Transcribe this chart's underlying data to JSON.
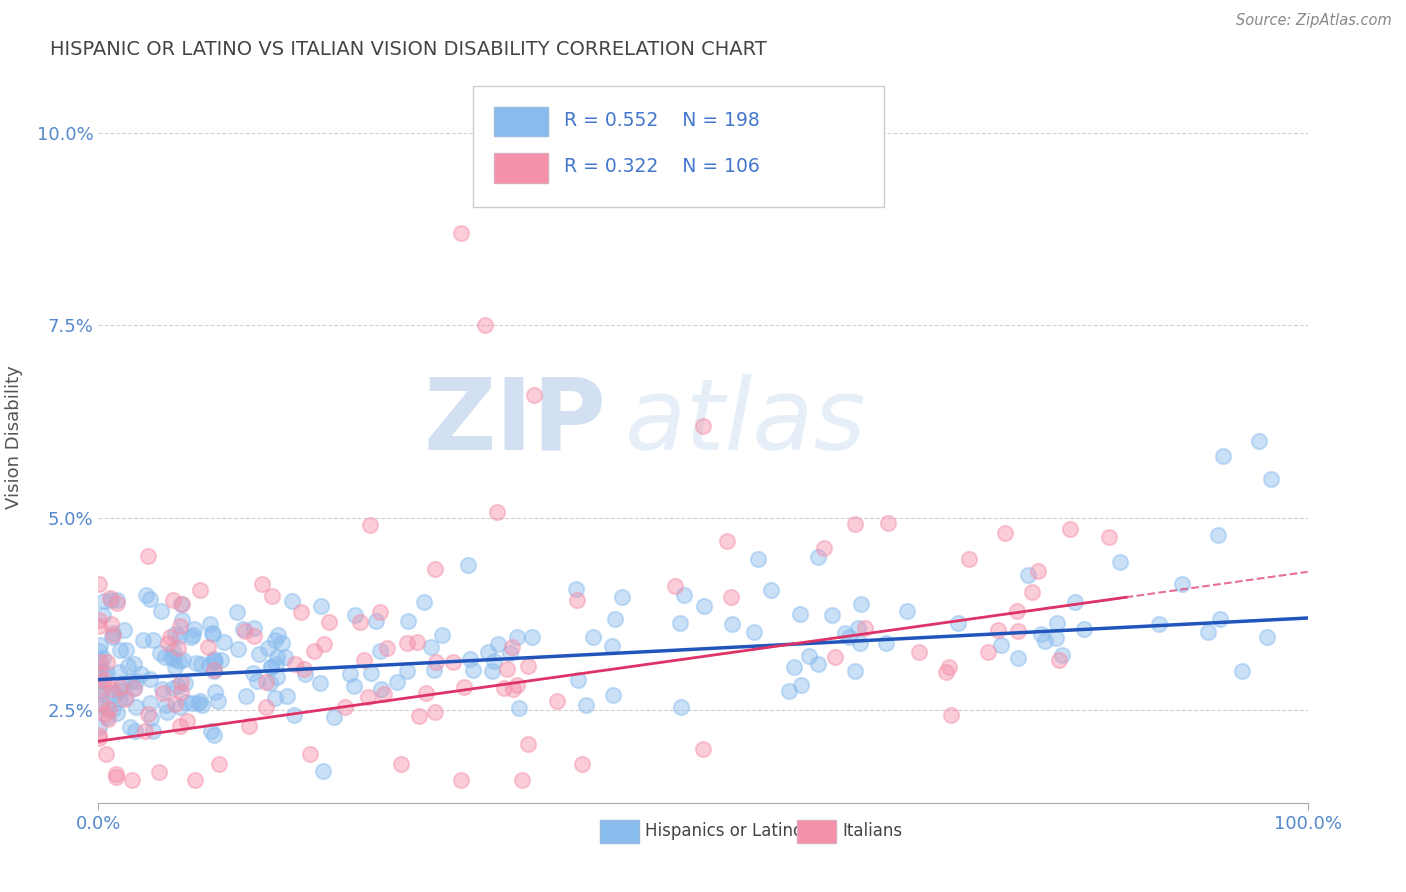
{
  "title": "HISPANIC OR LATINO VS ITALIAN VISION DISABILITY CORRELATION CHART",
  "source": "Source: ZipAtlas.com",
  "ylabel": "Vision Disability",
  "xlim": [
    0,
    1.0
  ],
  "ylim": [
    0.013,
    0.108
  ],
  "yticks": [
    0.025,
    0.05,
    0.075,
    0.1
  ],
  "ytick_labels": [
    "2.5%",
    "5.0%",
    "7.5%",
    "10.0%"
  ],
  "xtick_labels": [
    "0.0%",
    "100.0%"
  ],
  "blue_color": "#88bbee",
  "pink_color": "#f490aa",
  "blue_line_color": "#2255bb",
  "pink_line_color": "#dd3366",
  "legend_R_blue": "R = 0.552",
  "legend_N_blue": "N = 198",
  "legend_R_pink": "R = 0.322",
  "legend_N_pink": "N = 106",
  "blue_N": 198,
  "pink_N": 106,
  "watermark_zip": "ZIP",
  "watermark_atlas": "atlas",
  "background_color": "#ffffff",
  "grid_color": "#cccccc",
  "title_color": "#444444",
  "tick_color": "#5588cc",
  "legend_text_color": "#4477cc"
}
